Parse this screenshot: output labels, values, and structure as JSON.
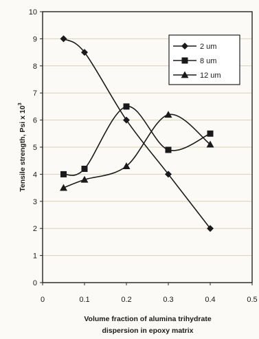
{
  "chart_data": {
    "type": "line",
    "title": "",
    "xlabel_lines": [
      "Volume fraction of alumina trihydrate",
      "dispersion in epoxy matrix"
    ],
    "ylabel": "Tensile strength, Psi x 10",
    "ylabel_superscript": "3",
    "xlim": [
      0,
      0.5
    ],
    "ylim": [
      0,
      10
    ],
    "xticks": [
      0,
      0.1,
      0.2,
      0.3,
      0.4,
      0.5
    ],
    "xtick_labels": [
      "0",
      "0.1",
      "0.2",
      "0.3",
      "0.4",
      "0.5"
    ],
    "yticks": [
      0,
      1,
      2,
      3,
      4,
      5,
      6,
      7,
      8,
      9,
      10
    ],
    "ytick_labels": [
      "0",
      "1",
      "2",
      "3",
      "4",
      "5",
      "6",
      "7",
      "8",
      "9",
      "10"
    ],
    "grid": "horizontal",
    "legend_position": "top-right",
    "smooth": true,
    "series": [
      {
        "name": "2 um",
        "marker": "diamond",
        "x": [
          0.05,
          0.1,
          0.2,
          0.3,
          0.4
        ],
        "y": [
          9.0,
          8.5,
          6.0,
          4.0,
          2.0
        ]
      },
      {
        "name": "8 um",
        "marker": "square",
        "x": [
          0.05,
          0.1,
          0.2,
          0.3,
          0.4
        ],
        "y": [
          4.0,
          4.2,
          6.5,
          4.9,
          5.5
        ]
      },
      {
        "name": "12 um",
        "marker": "triangle",
        "x": [
          0.05,
          0.1,
          0.2,
          0.3,
          0.4
        ],
        "y": [
          3.5,
          3.8,
          4.3,
          6.2,
          5.1
        ]
      }
    ]
  }
}
